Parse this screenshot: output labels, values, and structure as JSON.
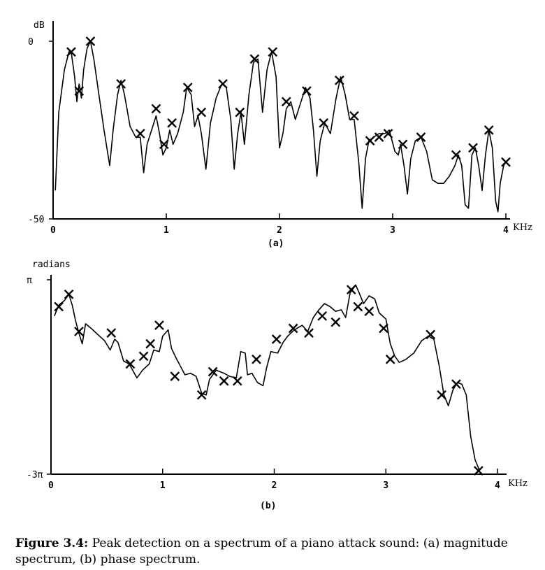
{
  "chart_data": [
    {
      "type": "line",
      "subtitle": "(a)",
      "ylabel": "dB",
      "xlabel": "KHz",
      "xlim": [
        0,
        4
      ],
      "ylim": [
        -50,
        0
      ],
      "x_ticks": [
        "0",
        "1",
        "2",
        "3",
        "4"
      ],
      "y_ticks": [
        "0",
        "-50"
      ],
      "series": [
        {
          "curve": [
            [
              0.02,
              -42
            ],
            [
              0.05,
              -20
            ],
            [
              0.1,
              -8
            ],
            [
              0.14,
              -3
            ],
            [
              0.16,
              -3
            ],
            [
              0.19,
              -10
            ],
            [
              0.21,
              -17
            ],
            [
              0.23,
              -12
            ],
            [
              0.25,
              -16
            ],
            [
              0.27,
              -8
            ],
            [
              0.3,
              -2
            ],
            [
              0.33,
              0
            ],
            [
              0.36,
              -5
            ],
            [
              0.4,
              -14
            ],
            [
              0.45,
              -25
            ],
            [
              0.5,
              -35
            ],
            [
              0.53,
              -25
            ],
            [
              0.57,
              -15
            ],
            [
              0.6,
              -11
            ],
            [
              0.63,
              -15
            ],
            [
              0.68,
              -24
            ],
            [
              0.73,
              -27
            ],
            [
              0.77,
              -27
            ],
            [
              0.8,
              -37
            ],
            [
              0.83,
              -29
            ],
            [
              0.88,
              -24
            ],
            [
              0.91,
              -21
            ],
            [
              0.94,
              -26
            ],
            [
              0.97,
              -32
            ],
            [
              1.0,
              -30
            ],
            [
              1.03,
              -25
            ],
            [
              1.06,
              -29
            ],
            [
              1.1,
              -26
            ],
            [
              1.15,
              -20
            ],
            [
              1.18,
              -13
            ],
            [
              1.22,
              -15
            ],
            [
              1.25,
              -24
            ],
            [
              1.28,
              -21
            ],
            [
              1.31,
              -26
            ],
            [
              1.35,
              -36
            ],
            [
              1.39,
              -23
            ],
            [
              1.44,
              -16
            ],
            [
              1.49,
              -12
            ],
            [
              1.53,
              -13
            ],
            [
              1.57,
              -22
            ],
            [
              1.6,
              -36
            ],
            [
              1.63,
              -26
            ],
            [
              1.66,
              -20
            ],
            [
              1.69,
              -29
            ],
            [
              1.73,
              -15
            ],
            [
              1.77,
              -6
            ],
            [
              1.81,
              -5
            ],
            [
              1.85,
              -20
            ],
            [
              1.89,
              -8
            ],
            [
              1.93,
              -3
            ],
            [
              1.97,
              -10
            ],
            [
              2.0,
              -30
            ],
            [
              2.03,
              -26
            ],
            [
              2.06,
              -19
            ],
            [
              2.1,
              -17
            ],
            [
              2.14,
              -22
            ],
            [
              2.19,
              -17
            ],
            [
              2.23,
              -13
            ],
            [
              2.27,
              -16
            ],
            [
              2.3,
              -25
            ],
            [
              2.33,
              -38
            ],
            [
              2.36,
              -28
            ],
            [
              2.4,
              -23
            ],
            [
              2.45,
              -26
            ],
            [
              2.5,
              -16
            ],
            [
              2.54,
              -10
            ],
            [
              2.58,
              -15
            ],
            [
              2.62,
              -22
            ],
            [
              2.66,
              -22
            ],
            [
              2.7,
              -34
            ],
            [
              2.73,
              -47
            ],
            [
              2.76,
              -33
            ],
            [
              2.79,
              -28
            ],
            [
              2.83,
              -27
            ],
            [
              2.88,
              -26
            ],
            [
              2.93,
              -26
            ],
            [
              2.97,
              -25
            ],
            [
              3.02,
              -31
            ],
            [
              3.05,
              -32
            ],
            [
              3.07,
              -29
            ],
            [
              3.1,
              -35
            ],
            [
              3.13,
              -43
            ],
            [
              3.16,
              -33
            ],
            [
              3.2,
              -28
            ],
            [
              3.25,
              -27
            ],
            [
              3.3,
              -31
            ],
            [
              3.35,
              -39
            ],
            [
              3.4,
              -40
            ],
            [
              3.45,
              -40
            ],
            [
              3.5,
              -38
            ],
            [
              3.55,
              -35
            ],
            [
              3.58,
              -32
            ],
            [
              3.61,
              -35
            ],
            [
              3.64,
              -46
            ],
            [
              3.67,
              -47
            ],
            [
              3.7,
              -32
            ],
            [
              3.73,
              -30
            ],
            [
              3.76,
              -35
            ],
            [
              3.79,
              -42
            ],
            [
              3.82,
              -32
            ],
            [
              3.85,
              -25
            ],
            [
              3.88,
              -30
            ],
            [
              3.91,
              -45
            ],
            [
              3.93,
              -48
            ],
            [
              3.95,
              -40
            ],
            [
              3.98,
              -35
            ],
            [
              4.0,
              -34
            ]
          ],
          "peaks": [
            [
              0.16,
              -3
            ],
            [
              0.23,
              -14
            ],
            [
              0.33,
              0
            ],
            [
              0.6,
              -12
            ],
            [
              0.77,
              -26
            ],
            [
              0.91,
              -19
            ],
            [
              0.98,
              -29
            ],
            [
              1.05,
              -23
            ],
            [
              1.19,
              -13
            ],
            [
              1.31,
              -20
            ],
            [
              1.5,
              -12
            ],
            [
              1.65,
              -20
            ],
            [
              1.78,
              -5
            ],
            [
              1.94,
              -3
            ],
            [
              2.06,
              -17
            ],
            [
              2.24,
              -14
            ],
            [
              2.39,
              -23
            ],
            [
              2.53,
              -11
            ],
            [
              2.66,
              -21
            ],
            [
              2.8,
              -28
            ],
            [
              2.88,
              -27
            ],
            [
              2.96,
              -26
            ],
            [
              3.09,
              -29
            ],
            [
              3.25,
              -27
            ],
            [
              3.56,
              -32
            ],
            [
              3.71,
              -30
            ],
            [
              3.85,
              -25
            ],
            [
              4.0,
              -34
            ]
          ]
        }
      ]
    },
    {
      "type": "line",
      "subtitle": "(b)",
      "ylabel": "radians",
      "xlabel": "KHz",
      "xlim": [
        0,
        4
      ],
      "ylim": [
        -9.42,
        3.14
      ],
      "x_ticks": [
        "0",
        "1",
        "2",
        "3",
        "4"
      ],
      "y_ticks": [
        "π",
        "-3π"
      ],
      "series": [
        {
          "curve": [
            [
              0.03,
              0.8
            ],
            [
              0.07,
              1.5
            ],
            [
              0.12,
              1.8
            ],
            [
              0.16,
              2.2
            ],
            [
              0.19,
              1.5
            ],
            [
              0.22,
              0.5
            ],
            [
              0.25,
              -0.3
            ],
            [
              0.28,
              -1.0
            ],
            [
              0.31,
              0.3
            ],
            [
              0.36,
              0.0
            ],
            [
              0.42,
              -0.4
            ],
            [
              0.48,
              -0.8
            ],
            [
              0.53,
              -1.4
            ],
            [
              0.57,
              -0.7
            ],
            [
              0.6,
              -0.9
            ],
            [
              0.65,
              -2.1
            ],
            [
              0.7,
              -2.3
            ],
            [
              0.77,
              -3.2
            ],
            [
              0.82,
              -2.7
            ],
            [
              0.88,
              -2.3
            ],
            [
              0.92,
              -1.4
            ],
            [
              0.97,
              -1.5
            ],
            [
              1.0,
              -0.5
            ],
            [
              1.05,
              -0.1
            ],
            [
              1.08,
              -1.3
            ],
            [
              1.12,
              -1.9
            ],
            [
              1.2,
              -3.0
            ],
            [
              1.25,
              -2.9
            ],
            [
              1.3,
              -3.1
            ],
            [
              1.35,
              -4.2
            ],
            [
              1.39,
              -4.3
            ],
            [
              1.42,
              -3.3
            ],
            [
              1.48,
              -2.7
            ],
            [
              1.55,
              -2.9
            ],
            [
              1.6,
              -3.1
            ],
            [
              1.66,
              -3.2
            ],
            [
              1.7,
              -1.5
            ],
            [
              1.74,
              -1.6
            ],
            [
              1.76,
              -3.0
            ],
            [
              1.8,
              -2.9
            ],
            [
              1.85,
              -3.5
            ],
            [
              1.9,
              -3.7
            ],
            [
              1.93,
              -2.6
            ],
            [
              1.97,
              -1.5
            ],
            [
              2.03,
              -1.6
            ],
            [
              2.08,
              -0.9
            ],
            [
              2.12,
              -0.5
            ],
            [
              2.18,
              -0.1
            ],
            [
              2.25,
              0.2
            ],
            [
              2.3,
              -0.2
            ],
            [
              2.35,
              0.7
            ],
            [
              2.4,
              1.2
            ],
            [
              2.45,
              1.6
            ],
            [
              2.5,
              1.4
            ],
            [
              2.55,
              1.1
            ],
            [
              2.6,
              1.2
            ],
            [
              2.64,
              0.7
            ],
            [
              2.68,
              2.3
            ],
            [
              2.73,
              2.8
            ],
            [
              2.76,
              2.3
            ],
            [
              2.8,
              1.6
            ],
            [
              2.85,
              2.1
            ],
            [
              2.9,
              1.9
            ],
            [
              2.94,
              1.0
            ],
            [
              3.0,
              0.6
            ],
            [
              3.04,
              -1.0
            ],
            [
              3.08,
              -1.8
            ],
            [
              3.12,
              -2.2
            ],
            [
              3.18,
              -2.0
            ],
            [
              3.25,
              -1.6
            ],
            [
              3.32,
              -0.8
            ],
            [
              3.38,
              -0.5
            ],
            [
              3.43,
              -0.7
            ],
            [
              3.48,
              -2.5
            ],
            [
              3.52,
              -4.3
            ],
            [
              3.56,
              -5.0
            ],
            [
              3.6,
              -4.0
            ],
            [
              3.64,
              -3.5
            ],
            [
              3.68,
              -3.6
            ],
            [
              3.72,
              -4.3
            ],
            [
              3.76,
              -7.0
            ],
            [
              3.8,
              -8.5
            ],
            [
              3.84,
              -9.2
            ]
          ],
          "peaks": [
            [
              0.07,
              1.4
            ],
            [
              0.16,
              2.2
            ],
            [
              0.25,
              -0.2
            ],
            [
              0.54,
              -0.3
            ],
            [
              0.71,
              -2.3
            ],
            [
              0.83,
              -1.8
            ],
            [
              0.89,
              -1.0
            ],
            [
              0.97,
              0.2
            ],
            [
              1.11,
              -3.1
            ],
            [
              1.35,
              -4.3
            ],
            [
              1.45,
              -2.8
            ],
            [
              1.55,
              -3.4
            ],
            [
              1.67,
              -3.4
            ],
            [
              1.84,
              -2.0
            ],
            [
              2.02,
              -0.7
            ],
            [
              2.17,
              0.0
            ],
            [
              2.31,
              -0.3
            ],
            [
              2.43,
              0.8
            ],
            [
              2.55,
              0.4
            ],
            [
              2.69,
              2.5
            ],
            [
              2.75,
              1.4
            ],
            [
              2.85,
              1.1
            ],
            [
              2.98,
              0.0
            ],
            [
              3.04,
              -2.0
            ],
            [
              3.4,
              -0.4
            ],
            [
              3.5,
              -4.3
            ],
            [
              3.63,
              -3.6
            ],
            [
              3.83,
              -9.2
            ]
          ]
        }
      ]
    }
  ],
  "caption": {
    "label": "Figure 3.4:",
    "text": "Peak detection on a spectrum of a piano attack sound: (a) magnitude spectrum, (b) phase spectrum."
  }
}
